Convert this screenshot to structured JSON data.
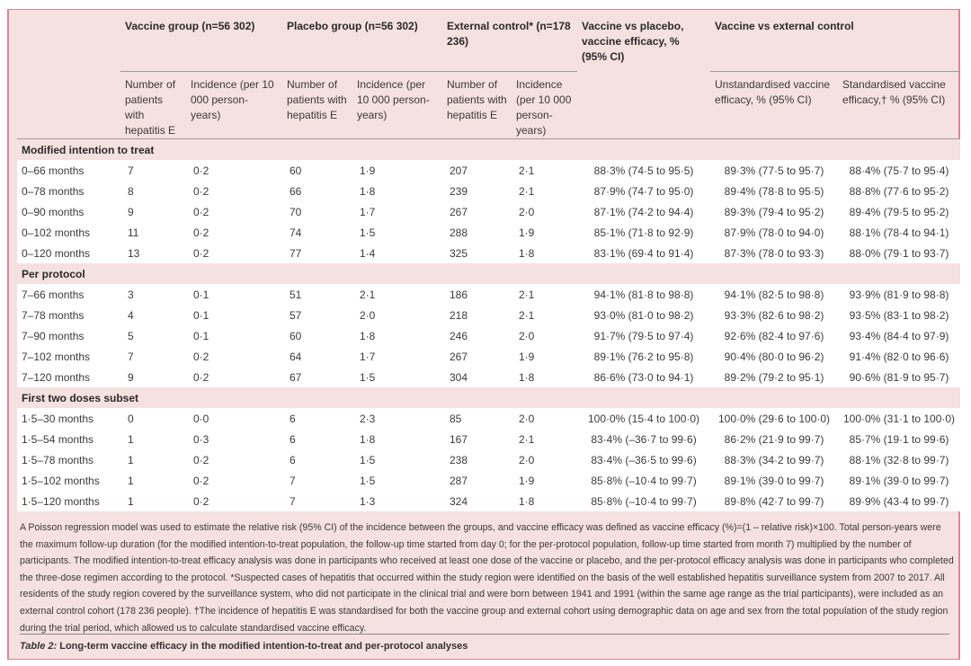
{
  "table": {
    "groups": {
      "vaccine": "Vaccine group (n=56 302)",
      "placebo": "Placebo group (n=56 302)",
      "external": "External control* (n=178 236)",
      "vs_placebo": "Vaccine vs placebo, vaccine efficacy, % (95% CI)",
      "vs_external": "Vaccine vs external control"
    },
    "subheaders": {
      "number": "Number of patients with hepatitis E",
      "incidence": "Incidence (per 10 000 person-years)",
      "unstandardised": "Unstandardised vaccine efficacy, % (95% CI)",
      "standardised": "Standardised vaccine efficacy,† % (95% CI)"
    },
    "sections": [
      {
        "title": "Modified intention to treat",
        "rows": [
          [
            "0–66 months",
            "7",
            "0·2",
            "60",
            "1·9",
            "207",
            "2·1",
            "88·3% (74·5 to 95·5)",
            "89·3% (77·5 to 95·7)",
            "88·4% (75·7 to 95·4)"
          ],
          [
            "0–78 months",
            "8",
            "0·2",
            "66",
            "1·8",
            "239",
            "2·1",
            "87·9% (74·7 to 95·0)",
            "89·4% (78·8 to 95·5)",
            "88·8% (77·6 to 95·2)"
          ],
          [
            "0–90 months",
            "9",
            "0·2",
            "70",
            "1·7",
            "267",
            "2·0",
            "87·1% (74·2 to 94·4)",
            "89·3% (79·4 to 95·2)",
            "89·4% (79·5 to 95·2)"
          ],
          [
            "0–102 months",
            "11",
            "0·2",
            "74",
            "1·5",
            "288",
            "1·9",
            "85·1% (71·8 to 92·9)",
            "87·9% (78·0 to 94·0)",
            "88·1% (78·4 to 94·1)"
          ],
          [
            "0–120 months",
            "13",
            "0·2",
            "77",
            "1·4",
            "325",
            "1·8",
            "83·1% (69·4 to 91·4)",
            "87·3% (78·0 to 93·3)",
            "88·0% (79·1 to 93·7)"
          ]
        ]
      },
      {
        "title": "Per protocol",
        "rows": [
          [
            "7–66 months",
            "3",
            "0·1",
            "51",
            "2·1",
            "186",
            "2·1",
            "94·1% (81·8 to 98·8)",
            "94·1% (82·5 to 98·8)",
            "93·9% (81·9 to 98·8)"
          ],
          [
            "7–78 months",
            "4",
            "0·1",
            "57",
            "2·0",
            "218",
            "2·1",
            "93·0% (81·0 to 98·2)",
            "93·3% (82·6 to 98·2)",
            "93·5% (83·1 to 98·2)"
          ],
          [
            "7–90 months",
            "5",
            "0·1",
            "60",
            "1·8",
            "246",
            "2·0",
            "91·7% (79·5 to 97·4)",
            "92·6% (82·4 to 97·6)",
            "93·4% (84·4 to 97·9)"
          ],
          [
            "7–102 months",
            "7",
            "0·2",
            "64",
            "1·7",
            "267",
            "1·9",
            "89·1% (76·2 to 95·8)",
            "90·4% (80·0 to 96·2)",
            "91·4% (82·0 to 96·6)"
          ],
          [
            "7–120 months",
            "9",
            "0·2",
            "67",
            "1·5",
            "304",
            "1·8",
            "86·6% (73·0 to 94·1)",
            "89·2% (79·2 to 95·1)",
            "90·6% (81·9 to 95·7)"
          ]
        ]
      },
      {
        "title": "First two doses subset",
        "rows": [
          [
            "1·5–30 months",
            "0",
            "0·0",
            "6",
            "2·3",
            "85",
            "2·0",
            "100·0% (15·4 to 100·0)",
            "100·0% (29·6 to 100·0)",
            "100·0% (31·1 to 100·0)"
          ],
          [
            "1·5–54 months",
            "1",
            "0·3",
            "6",
            "1·8",
            "167",
            "2·1",
            "83·4% (–36·7 to 99·6)",
            "86·2% (21·9 to 99·7)",
            "85·7% (19·1 to 99·6)"
          ],
          [
            "1·5–78 months",
            "1",
            "0·2",
            "6",
            "1·5",
            "238",
            "2·0",
            "83·4% (–36·5 to 99·6)",
            "88·3% (34·2 to 99·7)",
            "88·1% (32·8 to 99·7)"
          ],
          [
            "1·5–102 months",
            "1",
            "0·2",
            "7",
            "1·5",
            "287",
            "1·9",
            "85·8% (–10·4 to 99·7)",
            "89·1% (39·0 to 99·7)",
            "89·1% (39·0 to 99·7)"
          ],
          [
            "1·5–120 months",
            "1",
            "0·2",
            "7",
            "1·3",
            "324",
            "1·8",
            "85·8% (–10·4 to 99·7)",
            "89·8% (42·7 to 99·7)",
            "89·9% (43·4 to 99·7)"
          ]
        ]
      }
    ]
  },
  "footnote": "A Poisson regression model was used to estimate the relative risk (95% CI) of the incidence between the groups, and vaccine efficacy was defined as vaccine efficacy (%)=(1 – relative risk)×100. Total person-years were the maximum follow-up duration (for the modified intention-to-treat population, the follow-up time started from day 0; for the per-protocol population, follow-up time started from month 7) multiplied by the number of participants. The modified intention-to-treat efficacy analysis was done in participants who received at least one dose of the vaccine or placebo, and the per-protocol efficacy analysis was done in participants who completed the three-dose regimen according to the protocol. *Suspected cases of hepatitis that occurred within the study region were identified on the basis of the well established hepatitis surveillance system from 2007 to 2017. All residents of the study region covered by the surveillance system, who did not participate in the clinical trial and were born between 1941 and 1991 (within the same age range as the trial participants), were included as an external control cohort (178 236 people). †The incidence of hepatitis E was standardised for both the vaccine group and external cohort using demographic data on age and sex from the total population of the study region during the trial period, which allowed us to calculate standardised vaccine efficacy.",
  "caption": {
    "label": "Table 2:",
    "text": " Long-term vaccine efficacy in the modified intention-to-treat and per-protocol analyses"
  }
}
